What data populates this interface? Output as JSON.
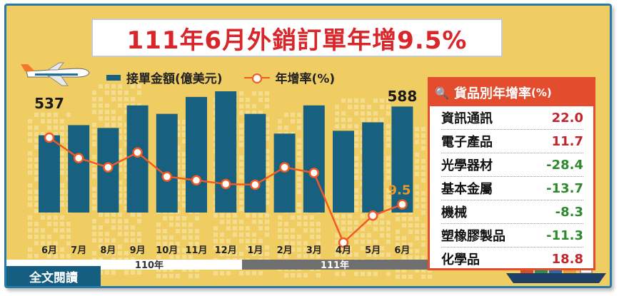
{
  "title": "111年6月外銷訂單年增9.5%",
  "legend": {
    "bar_label": "接單金額(億美元)",
    "line_label": "年增率(%)"
  },
  "ticker": "全文閱讀",
  "colors": {
    "bar": "#17607f",
    "line": "#f15a22",
    "background": "#f0cd62",
    "accent_red": "#d8262b",
    "positive": "#c0262c",
    "negative": "#2e8a2a"
  },
  "chart_data": {
    "type": "bar",
    "categories": [
      "6月",
      "7月",
      "8月",
      "9月",
      "10月",
      "11月",
      "12月",
      "1月",
      "2月",
      "3月",
      "4月",
      "5月",
      "6月"
    ],
    "year_groups": [
      {
        "label": "110年"
      },
      {
        "label": "111年"
      }
    ],
    "series": [
      {
        "name": "接單金額(億美元)",
        "type": "bar",
        "values": [
          537,
          555,
          550,
          590,
          575,
          605,
          615,
          575,
          540,
          590,
          545,
          560,
          588
        ]
      },
      {
        "name": "年增率(%)",
        "type": "line",
        "values": [
          27.5,
          22.0,
          19.5,
          23.5,
          17.0,
          16.0,
          15.0,
          14.8,
          19.5,
          18.0,
          -0.8,
          6.5,
          9.5
        ]
      }
    ],
    "data_labels": {
      "first_bar": "537",
      "last_bar": "588",
      "last_line": "9.5"
    }
  },
  "panel": {
    "title": "貨品別年增率",
    "unit": "(%)",
    "icon": "magnifier-box-icon",
    "rows": [
      {
        "name": "資訊通訊",
        "value": "22.0"
      },
      {
        "name": "電子產品",
        "value": "11.7"
      },
      {
        "name": "光學器材",
        "value": "-28.4"
      },
      {
        "name": "基本金屬",
        "value": "-13.7"
      },
      {
        "name": "機械",
        "value": "-8.3"
      },
      {
        "name": "塑橡膠製品",
        "value": "-11.3"
      },
      {
        "name": "化學品",
        "value": "18.8"
      }
    ]
  }
}
